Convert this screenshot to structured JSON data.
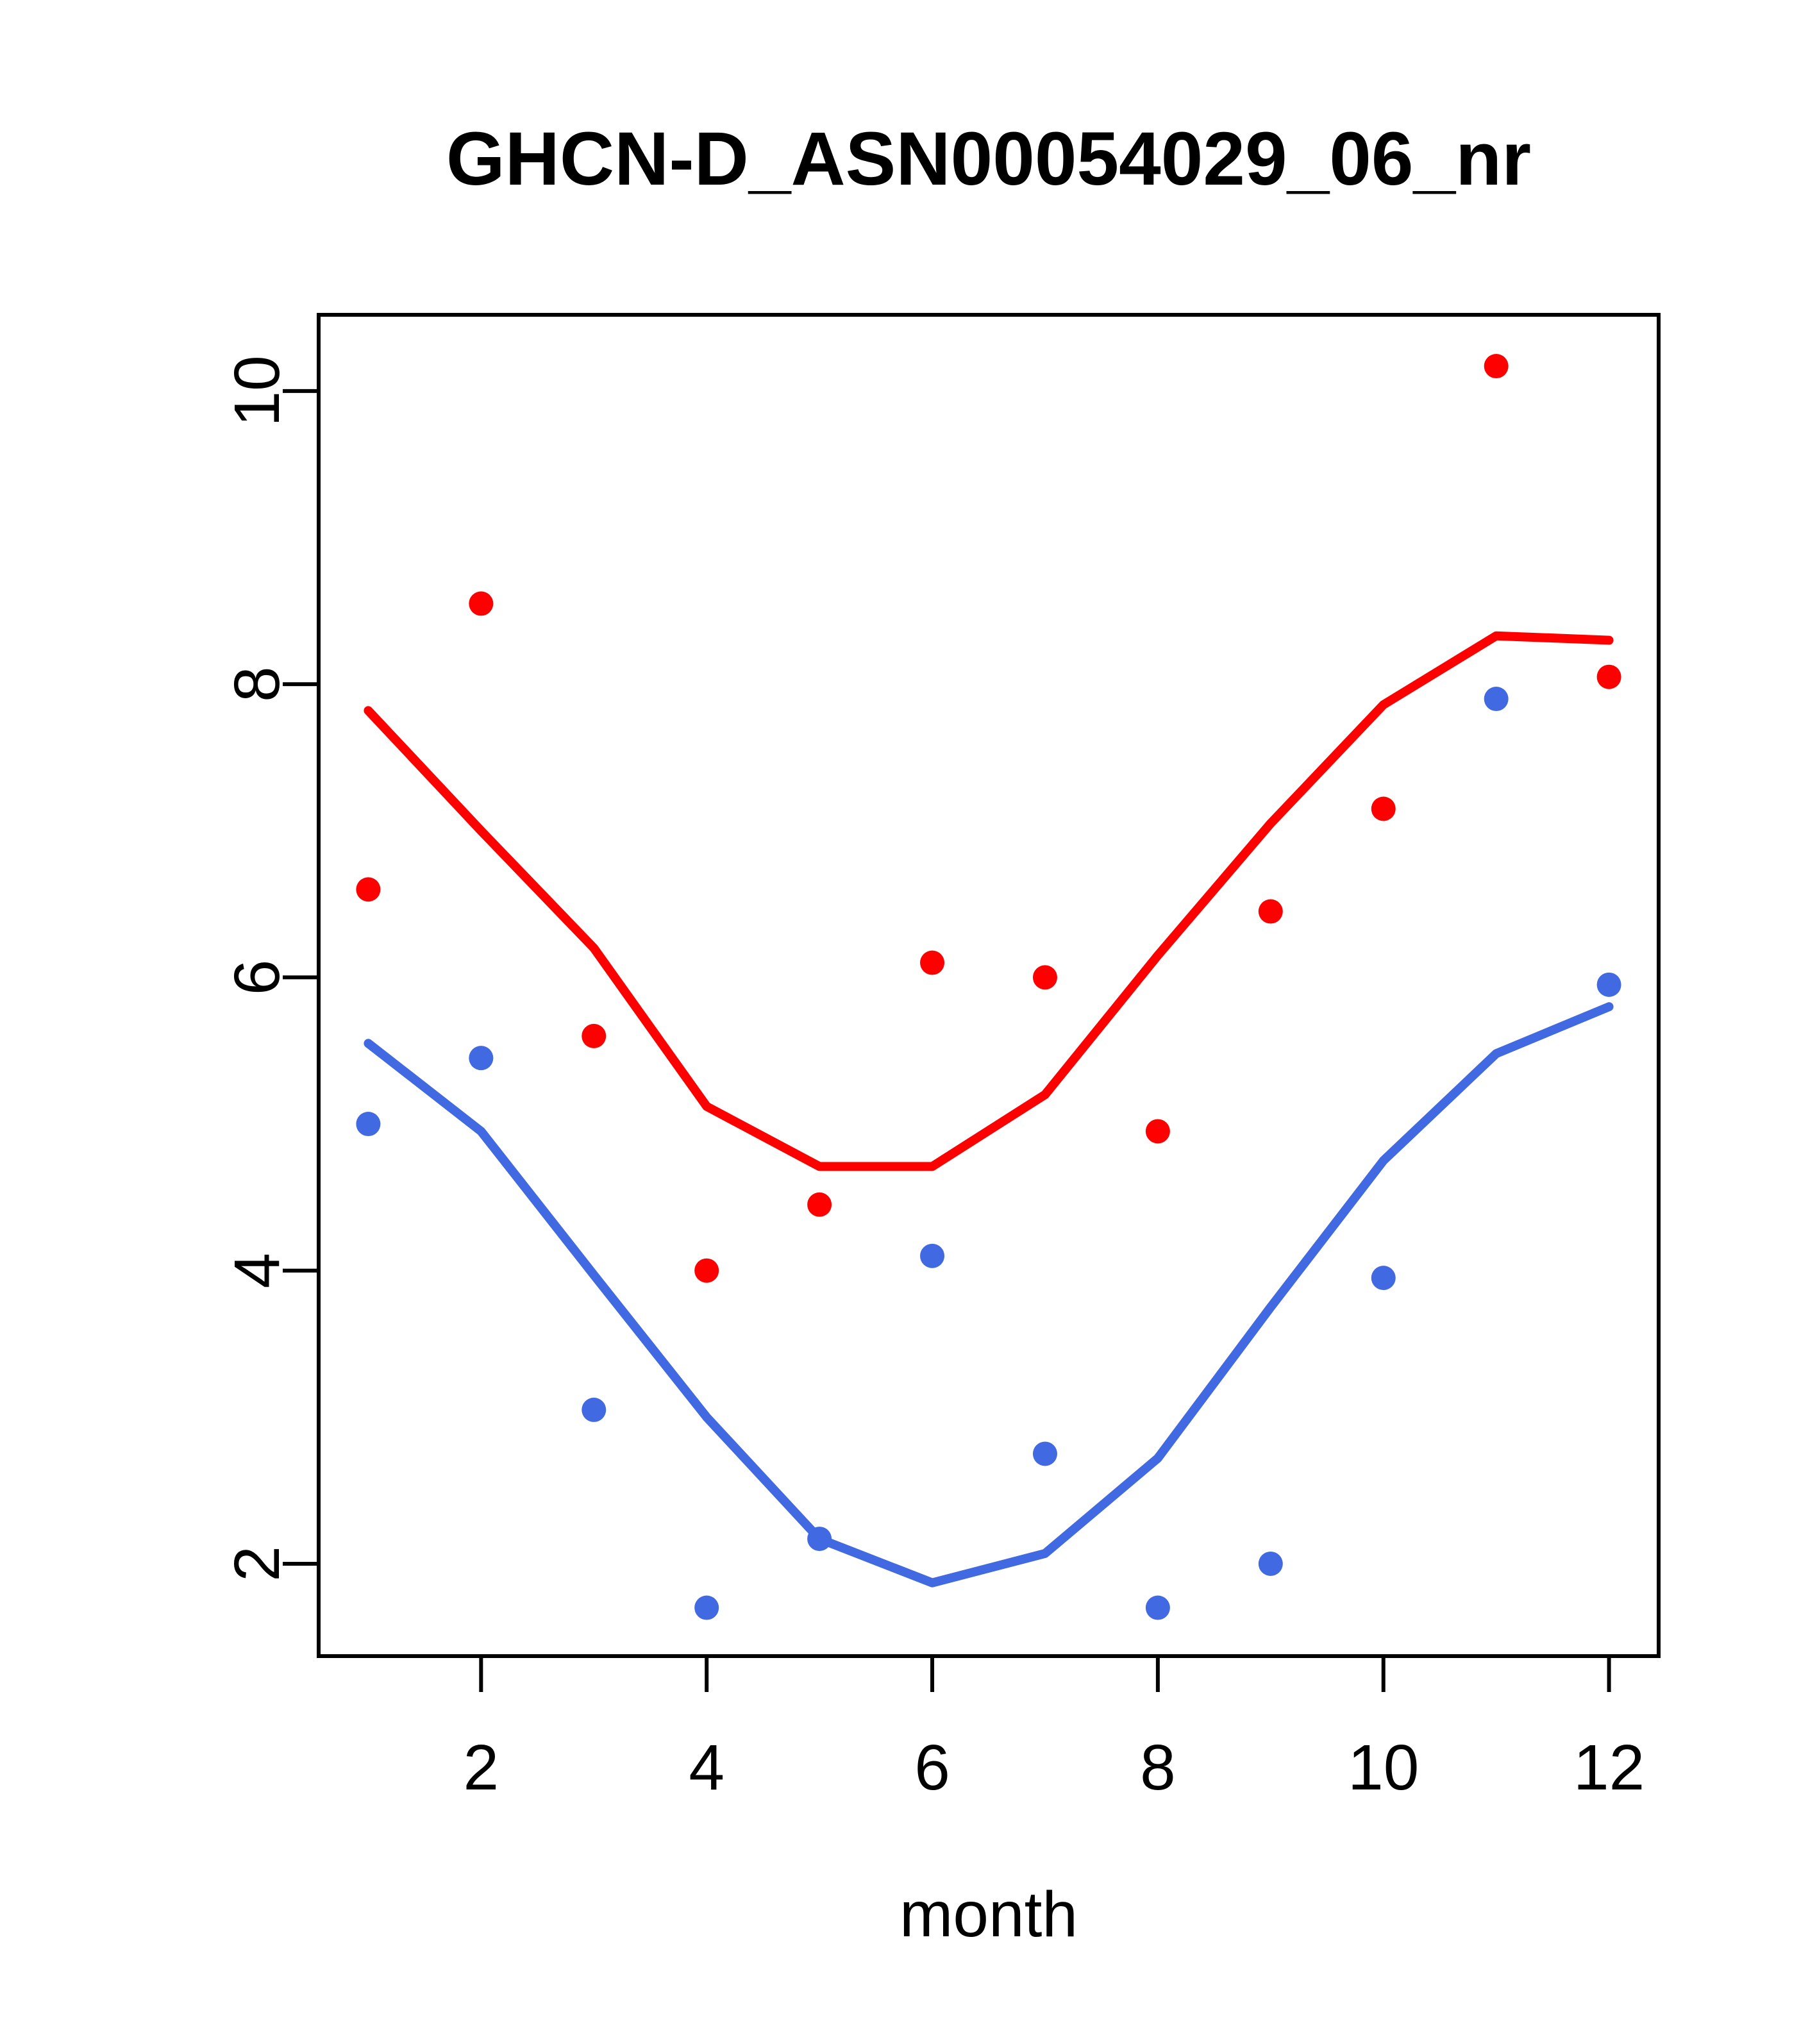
{
  "chart": {
    "title": "GHCN-D_ASN00054029_06_nr",
    "xlabel": "month"
  },
  "chart_data": {
    "type": "scatter",
    "title": "GHCN-D_ASN00054029_06_nr",
    "xlabel": "month",
    "ylabel": "",
    "x": [
      1,
      2,
      3,
      4,
      5,
      6,
      7,
      8,
      9,
      10,
      11,
      12
    ],
    "xlim": [
      0.56,
      12.44
    ],
    "ylim": [
      1.37,
      10.52
    ],
    "x_ticks": [
      2,
      4,
      6,
      8,
      10,
      12
    ],
    "y_ticks": [
      2,
      4,
      6,
      8,
      10
    ],
    "grid": false,
    "legend_position": "none",
    "colors": {
      "red": "#FF0000",
      "blue": "#4169E1",
      "axis": "#000000",
      "background": "#FFFFFF"
    },
    "series": [
      {
        "name": "red-points",
        "kind": "points",
        "color": "#FF0000",
        "x": [
          1,
          2,
          3,
          4,
          5,
          6,
          7,
          8,
          9,
          10,
          11,
          12
        ],
        "y": [
          6.6,
          8.55,
          5.6,
          4.0,
          4.45,
          6.1,
          6.0,
          4.95,
          6.45,
          7.15,
          10.17,
          8.05
        ]
      },
      {
        "name": "blue-points",
        "kind": "points",
        "color": "#4169E1",
        "x": [
          1,
          2,
          3,
          4,
          5,
          6,
          7,
          8,
          9,
          10,
          11,
          12
        ],
        "y": [
          5.0,
          5.45,
          3.05,
          1.7,
          2.17,
          4.1,
          2.75,
          1.7,
          2.0,
          3.95,
          7.9,
          5.95
        ]
      },
      {
        "name": "red-lowess-line",
        "kind": "line",
        "color": "#FF0000",
        "x": [
          1,
          2,
          3,
          4,
          5,
          6,
          7,
          8,
          9,
          10,
          11,
          12
        ],
        "y": [
          7.82,
          7.0,
          6.2,
          5.12,
          4.71,
          4.71,
          5.2,
          6.15,
          7.05,
          7.86,
          8.33,
          8.3
        ]
      },
      {
        "name": "blue-lowess-line",
        "kind": "line",
        "color": "#4169E1",
        "x": [
          1,
          2,
          3,
          4,
          5,
          6,
          7,
          8,
          9,
          10,
          11,
          12
        ],
        "y": [
          5.55,
          4.95,
          3.97,
          3.0,
          2.17,
          1.87,
          2.07,
          2.72,
          3.75,
          4.75,
          5.48,
          5.8
        ]
      }
    ]
  }
}
